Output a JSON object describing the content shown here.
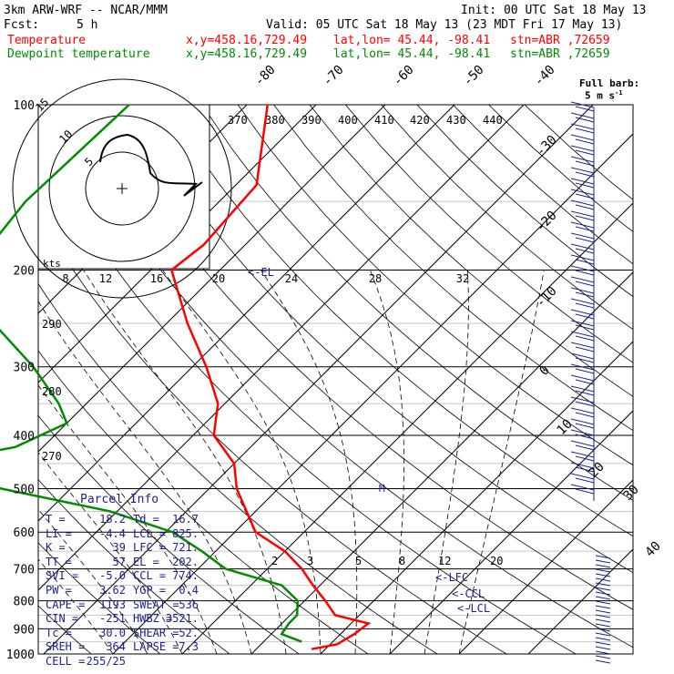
{
  "header": {
    "model": "3km ARW-WRF -- NCAR/MMM",
    "init": "Init: 00 UTC Sat 18 May 13",
    "fcst_label": "Fcst:",
    "fcst_value": "5 h",
    "valid": "Valid: 05 UTC Sat 18 May 13 (23 MDT Fri 17 May 13)",
    "temp_label": "Temperature",
    "dew_label": "Dewpoint temperature",
    "xy": "x,y=458.16,729.49",
    "latlon": "lat,lon= 45.44, -98.41",
    "stn": "stn=ABR ,72659"
  },
  "colors": {
    "temperature": "#ff0000",
    "dewpoint": "#008c00",
    "text": "#000000",
    "panel": "#1e1e8c",
    "isotherm": "#000000"
  },
  "barb_label": "Full barb:",
  "barb_units": "5 m s",
  "barb_units_exp": "-1",
  "hodograph": {
    "kts_label": "kts",
    "ring_labels": [
      "5",
      "10"
    ],
    "speed_scale": [
      "8",
      "12",
      "16",
      "20",
      "24",
      "28",
      "32"
    ]
  },
  "theta_labels": [
    "370",
    "380",
    "390",
    "400",
    "410",
    "420",
    "430",
    "440"
  ],
  "theta_side_labels": [
    "290",
    "280",
    "270"
  ],
  "markers": {
    "el": "<-EL",
    "lfc": "<-LFC",
    "ccl": "<-CCL",
    "lcl": "<-LCL",
    "m": "M"
  },
  "parcel": {
    "title": "Parcel Info",
    "rows": [
      [
        "T",
        "18.2",
        "Td",
        "16.7"
      ],
      [
        "LI",
        "-4.4",
        "LCL",
        "825."
      ],
      [
        "K",
        "39",
        "LFC",
        "721."
      ],
      [
        "TT",
        "57",
        "EL",
        "202."
      ],
      [
        "SVI",
        "-5.0",
        "CCL",
        "774."
      ],
      [
        "PW",
        "3.62",
        "YGP",
        "0.4"
      ],
      [
        "CAPE",
        "1193",
        "SWEAT",
        "536"
      ],
      [
        "CIN",
        "-251",
        "HWBZ",
        "3521."
      ],
      [
        "Tc",
        "30.0",
        "SHEAR",
        "52."
      ],
      [
        "SREH",
        "364",
        "LAPSE",
        "7.3"
      ],
      [
        "CELL",
        "255/25",
        "",
        ""
      ]
    ]
  },
  "chart_data": {
    "type": "line",
    "diagram": "skew-T log-p",
    "pressure_levels": [
      100,
      200,
      300,
      400,
      500,
      600,
      700,
      800,
      900,
      1000
    ],
    "isotherm_labels": [
      -80,
      -70,
      -60,
      -50,
      -40,
      -30,
      -20,
      -10,
      0,
      10,
      20,
      30,
      40
    ],
    "mixing_ratio_labels": [
      "2",
      "3",
      "5",
      "8",
      "12",
      "20"
    ],
    "series": [
      {
        "name": "Temperature",
        "points": [
          [
            100,
            -67
          ],
          [
            140,
            -57
          ],
          [
            180,
            -56
          ],
          [
            200,
            -57
          ],
          [
            250,
            -47
          ],
          [
            300,
            -38
          ],
          [
            350,
            -31
          ],
          [
            400,
            -27
          ],
          [
            450,
            -20
          ],
          [
            500,
            -16
          ],
          [
            600,
            -7
          ],
          [
            650,
            0
          ],
          [
            700,
            5
          ],
          [
            750,
            9
          ],
          [
            800,
            13
          ],
          [
            850,
            16.5
          ],
          [
            880,
            22.5
          ],
          [
            920,
            22
          ],
          [
            960,
            21
          ],
          [
            980,
            18
          ]
        ]
      },
      {
        "name": "Dewpoint temperature",
        "points": [
          [
            100,
            -87
          ],
          [
            150,
            -88
          ],
          [
            200,
            -86
          ],
          [
            250,
            -75
          ],
          [
            300,
            -63
          ],
          [
            350,
            -54
          ],
          [
            380,
            -50
          ],
          [
            420,
            -54
          ],
          [
            450,
            -64
          ],
          [
            500,
            -50
          ],
          [
            550,
            -31
          ],
          [
            600,
            -19
          ],
          [
            650,
            -12
          ],
          [
            700,
            -6
          ],
          [
            750,
            4.5
          ],
          [
            800,
            9
          ],
          [
            850,
            11
          ],
          [
            880,
            11
          ],
          [
            920,
            11.5
          ],
          [
            950,
            15.5
          ]
        ]
      }
    ]
  }
}
